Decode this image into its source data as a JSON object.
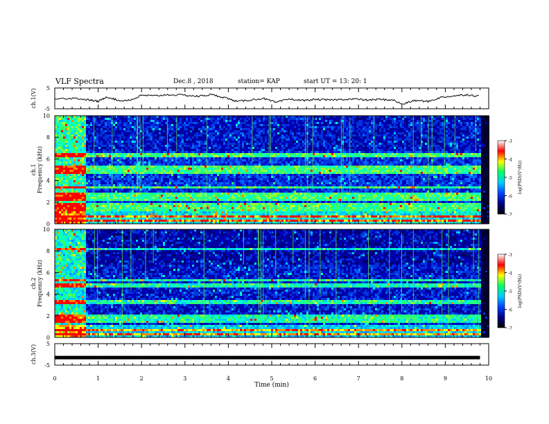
{
  "header": {
    "title": "VLF Spectra",
    "date": "Dec.8  , 2018",
    "station": "station= KAP",
    "start": "start  UT =    13: 20: 1"
  },
  "colorbar": {
    "label": "log(PSD)(V²/Hz)",
    "ticks": [
      "-3",
      "-4",
      "-5",
      "-6",
      "-7"
    ],
    "colors": [
      "#ffffff",
      "#ff0000",
      "#ffff00",
      "#00ff66",
      "#00ccff",
      "#0044ff",
      "#000088",
      "#000000"
    ]
  },
  "chart_data": [
    {
      "type": "line",
      "panel": "ch1",
      "ylabel": "ch.1(V)",
      "ylim": [
        -5,
        5
      ],
      "yticks": [
        "5",
        "-5"
      ],
      "xlim": [
        0,
        10
      ],
      "x": [
        0,
        0.5,
        0.8,
        1.0,
        1.2,
        1.5,
        1.8,
        2.0,
        2.3,
        2.6,
        3.0,
        3.3,
        3.6,
        3.9,
        4.2,
        4.5,
        4.8,
        5.1,
        5.4,
        5.7,
        6.0,
        6.3,
        6.6,
        6.9,
        7.2,
        7.5,
        7.8,
        8.0,
        8.3,
        8.6,
        8.9,
        9.2,
        9.5,
        9.8
      ],
      "values": [
        0,
        0,
        -0.8,
        -1.5,
        0.8,
        -1.2,
        -0.5,
        1.5,
        1.2,
        1.8,
        1.5,
        1.0,
        1.8,
        0.5,
        -1.5,
        -0.8,
        0.0,
        -2.0,
        -0.3,
        -1.0,
        -0.5,
        -0.8,
        -0.5,
        -0.3,
        -0.8,
        -0.5,
        -0.8,
        -2.8,
        -1.0,
        -1.5,
        0.5,
        1.2,
        1.8,
        1.0
      ]
    },
    {
      "type": "heatmap",
      "panel": "ch1",
      "xlabel": "",
      "ylabel": "ch.1\nFrequency  (kHz)",
      "xlim": [
        0,
        10
      ],
      "ylim": [
        0,
        10
      ],
      "yticks": [
        "0",
        "2",
        "4",
        "6",
        "8",
        "10"
      ],
      "bands_khz": [
        0.4,
        0.8,
        1.4,
        1.8,
        2.4,
        2.8,
        3.5,
        4.9,
        5.3,
        6.4
      ]
    },
    {
      "type": "heatmap",
      "panel": "ch2",
      "xlabel": "",
      "ylabel": "ch.2\nFrequency  (kHz)",
      "xlim": [
        0,
        10
      ],
      "ylim": [
        0,
        10
      ],
      "yticks": [
        "0",
        "2",
        "4",
        "6",
        "8",
        "10"
      ],
      "bands_khz": [
        0.4,
        0.8,
        1.6,
        2.0,
        3.4,
        4.9,
        5.4,
        8.3
      ]
    },
    {
      "type": "line",
      "panel": "ch3",
      "xlabel": "Time  (min)",
      "ylabel": "ch.3(V)",
      "ylim": [
        -5,
        5
      ],
      "yticks": [
        "5",
        "-5"
      ],
      "xlim": [
        0,
        10
      ],
      "xticks": [
        "0",
        "1",
        "2",
        "3",
        "4",
        "5",
        "6",
        "7",
        "8",
        "9",
        "10"
      ],
      "x": [
        0,
        9.8
      ],
      "values": [
        -1.5,
        -1.5
      ]
    }
  ]
}
